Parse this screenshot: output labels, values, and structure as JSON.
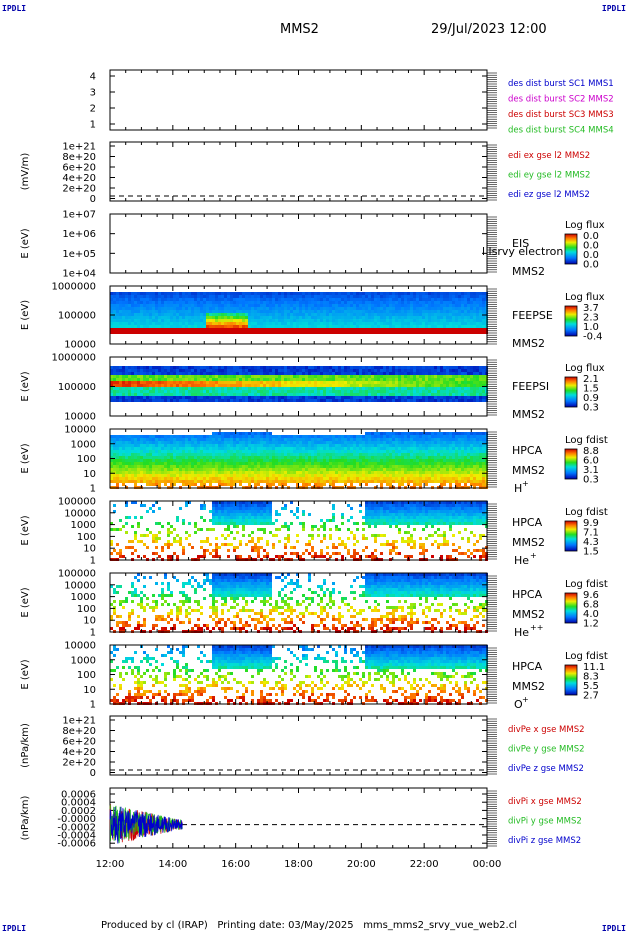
{
  "header": {
    "logo_left": "IPDLI",
    "logo_right": "IPDLI",
    "spacecraft": "MMS2",
    "datetime": "29/Jul/2023 12:00"
  },
  "footer": {
    "logo_left": "IPDLI",
    "logo_right": "IPDLI",
    "text": "Produced by cl (IRAP)   Printing date: 03/May/2025   mms_mms2_srvy_vue_web2.cl"
  },
  "x_axis": {
    "ticks": [
      "12:00",
      "14:00",
      "16:00",
      "18:00",
      "20:00",
      "22:00",
      "00:00"
    ],
    "range_hours": [
      12,
      24
    ]
  },
  "colors": {
    "blue": "#0000cc",
    "magenta": "#cc00cc",
    "red": "#cc0000",
    "green": "#22bb22"
  },
  "chart_data": [
    {
      "type": "line",
      "id": "burst",
      "ylabel": "",
      "ytick_labels": [
        "4",
        "3",
        "2",
        "1"
      ],
      "legend": [
        {
          "text": "des dist burst SC1 MMS1",
          "color": "#0000cc"
        },
        {
          "text": "des dist burst SC2 MMS2",
          "color": "#cc00cc"
        },
        {
          "text": "des dist burst SC3 MMS3",
          "color": "#cc0000"
        },
        {
          "text": "des dist burst SC4 MMS4",
          "color": "#22bb22"
        }
      ]
    },
    {
      "type": "line",
      "id": "edi",
      "ylabel": "(mV/m)",
      "ytick_labels": [
        "1e+21",
        "8e+20",
        "6e+20",
        "4e+20",
        "2e+20",
        "0"
      ],
      "legend": [
        {
          "text": "edi ex gse l2 MMS2",
          "color": "#cc0000"
        },
        {
          "text": "edi ey gse l2 MMS2",
          "color": "#22bb22"
        },
        {
          "text": "edi ez gse l2 MMS2",
          "color": "#0000cc"
        }
      ]
    },
    {
      "type": "heatmap",
      "id": "eis",
      "ylabel": "E (eV)",
      "ytick_labels": [
        "1e+07",
        "1e+06",
        "1e+05",
        "1e+04"
      ],
      "instrument": "EIS",
      "overlay_text": "l lsrvy electron to",
      "sc": "MMS2",
      "cbar_title": "Log flux",
      "cbar_labels": [
        "0.0",
        "0.0",
        "0.0",
        "0.0"
      ]
    },
    {
      "type": "heatmap",
      "id": "feeps_e",
      "ylabel": "E (eV)",
      "ytick_labels": [
        "1000000",
        "100000",
        "10000"
      ],
      "instrument": "FEEPSE",
      "sc": "MMS2",
      "cbar_title": "Log flux",
      "cbar_labels": [
        "3.7",
        "2.3",
        "1.0",
        "-0.4"
      ]
    },
    {
      "type": "heatmap",
      "id": "feeps_i",
      "ylabel": "E (eV)",
      "ytick_labels": [
        "1000000",
        "100000",
        "10000"
      ],
      "instrument": "FEEPSI",
      "sc": "MMS2",
      "cbar_title": "Log flux",
      "cbar_labels": [
        "2.1",
        "1.5",
        "0.9",
        "0.3"
      ]
    },
    {
      "type": "heatmap",
      "id": "hpca_h",
      "ylabel": "E (eV)",
      "ytick_labels": [
        "10000",
        "1000",
        "100",
        "10",
        "1"
      ],
      "instrument": "HPCA",
      "sc": "MMS2",
      "species": "H",
      "charge": "+",
      "cbar_title": "Log fdist",
      "cbar_labels": [
        "8.8",
        "6.0",
        "3.1",
        "0.3"
      ]
    },
    {
      "type": "heatmap",
      "id": "hpca_he1",
      "ylabel": "E (eV)",
      "ytick_labels": [
        "100000",
        "10000",
        "1000",
        "100",
        "10",
        "1"
      ],
      "instrument": "HPCA",
      "sc": "MMS2",
      "species": "He",
      "charge": "+",
      "cbar_title": "Log fdist",
      "cbar_labels": [
        "9.9",
        "7.1",
        "4.3",
        "1.5"
      ]
    },
    {
      "type": "heatmap",
      "id": "hpca_he2",
      "ylabel": "E (eV)",
      "ytick_labels": [
        "100000",
        "10000",
        "1000",
        "100",
        "10",
        "1"
      ],
      "instrument": "HPCA",
      "sc": "MMS2",
      "species": "He",
      "charge": "++",
      "cbar_title": "Log fdist",
      "cbar_labels": [
        "9.6",
        "6.8",
        "4.0",
        "1.2"
      ]
    },
    {
      "type": "heatmap",
      "id": "hpca_o",
      "ylabel": "E (eV)",
      "ytick_labels": [
        "10000",
        "1000",
        "100",
        "10",
        "1"
      ],
      "instrument": "HPCA",
      "sc": "MMS2",
      "species": "O",
      "charge": "+",
      "cbar_title": "Log fdist",
      "cbar_labels": [
        "11.1",
        "8.3",
        "5.5",
        "2.7"
      ]
    },
    {
      "type": "line",
      "id": "divpe",
      "ylabel": "(nPa/km)",
      "ytick_labels": [
        "1e+21",
        "8e+20",
        "6e+20",
        "4e+20",
        "2e+20",
        "0"
      ],
      "legend": [
        {
          "text": "divPe x gse MMS2",
          "color": "#cc0000"
        },
        {
          "text": "divPe y gse MMS2",
          "color": "#22bb22"
        },
        {
          "text": "divPe z gse MMS2",
          "color": "#0000cc"
        }
      ]
    },
    {
      "type": "line",
      "id": "divpi",
      "ylabel": "(nPa/km)",
      "ytick_labels": [
        "0.0006",
        "0.0004",
        "0.0002",
        "-0.0000",
        "-0.0002",
        "-0.0004",
        "-0.0006"
      ],
      "y_values": [
        0.0006,
        0.0004,
        0.0002,
        0.0,
        -0.0002,
        -0.0004,
        -0.0006
      ],
      "data_extent_hours": [
        12.0,
        14.3
      ],
      "legend": [
        {
          "text": "divPi x gse MMS2",
          "color": "#cc0000"
        },
        {
          "text": "divPi y gse MMS2",
          "color": "#22bb22"
        },
        {
          "text": "divPi z gse MMS2",
          "color": "#0000cc"
        }
      ]
    }
  ]
}
